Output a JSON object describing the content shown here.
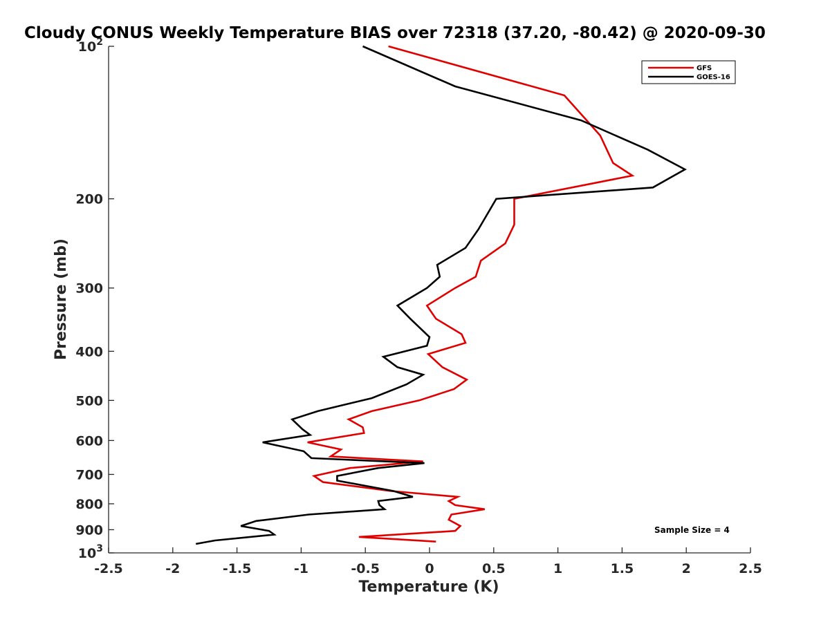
{
  "chart_data": {
    "type": "line",
    "title": "Cloudy CONUS Weekly Temperature BIAS over 72318 (37.20, -80.42) @ 2020-09-30",
    "xlabel": "Temperature (K)",
    "ylabel": "Pressure (mb)",
    "xlim": [
      -2.5,
      2.5
    ],
    "ylim": [
      100,
      1000
    ],
    "yscale": "log",
    "y_reversed": true,
    "grid": false,
    "legend_position": "top-right",
    "x_ticks": [
      "-2.5",
      "-2",
      "-1.5",
      "-1",
      "-0.5",
      "0",
      "0.5",
      "1",
      "1.5",
      "2",
      "2.5"
    ],
    "y_ticks": [
      {
        "value": 100,
        "base": "10",
        "exp": "2"
      },
      {
        "value": 200,
        "label": "200"
      },
      {
        "value": 300,
        "label": "300"
      },
      {
        "value": 400,
        "label": "400"
      },
      {
        "value": 500,
        "label": "500"
      },
      {
        "value": 600,
        "label": "600"
      },
      {
        "value": 700,
        "label": "700"
      },
      {
        "value": 800,
        "label": "800"
      },
      {
        "value": 900,
        "label": "900"
      },
      {
        "value": 1000,
        "base": "10",
        "exp": "3"
      }
    ],
    "series": [
      {
        "name": "GFS",
        "color": "#e00000",
        "points": [
          [
            -0.32,
            100
          ],
          [
            1.05,
            125
          ],
          [
            1.33,
            150
          ],
          [
            1.43,
            170
          ],
          [
            1.58,
            180
          ],
          [
            0.66,
            200
          ],
          [
            0.66,
            225
          ],
          [
            0.59,
            245
          ],
          [
            0.4,
            265
          ],
          [
            0.36,
            285
          ],
          [
            0.2,
            300
          ],
          [
            -0.02,
            325
          ],
          [
            0.05,
            345
          ],
          [
            0.25,
            370
          ],
          [
            0.28,
            385
          ],
          [
            -0.01,
            405
          ],
          [
            0.1,
            430
          ],
          [
            0.29,
            455
          ],
          [
            0.19,
            475
          ],
          [
            -0.08,
            500
          ],
          [
            -0.45,
            525
          ],
          [
            -0.63,
            545
          ],
          [
            -0.52,
            565
          ],
          [
            -0.51,
            580
          ],
          [
            -0.95,
            605
          ],
          [
            -0.69,
            625
          ],
          [
            -0.77,
            645
          ],
          [
            -0.05,
            660
          ],
          [
            -0.62,
            680
          ],
          [
            -0.9,
            705
          ],
          [
            -0.83,
            725
          ],
          [
            -0.3,
            755
          ],
          [
            0.22,
            775
          ],
          [
            0.15,
            790
          ],
          [
            0.2,
            805
          ],
          [
            0.43,
            820
          ],
          [
            0.17,
            840
          ],
          [
            0.15,
            860
          ],
          [
            0.24,
            885
          ],
          [
            0.2,
            905
          ],
          [
            -0.55,
            930
          ],
          [
            0.05,
            950
          ]
        ]
      },
      {
        "name": "GOES-16",
        "color": "#000000",
        "points": [
          [
            -0.52,
            100
          ],
          [
            0.2,
            120
          ],
          [
            1.18,
            140
          ],
          [
            1.7,
            160
          ],
          [
            1.99,
            175
          ],
          [
            1.74,
            190
          ],
          [
            0.52,
            200
          ],
          [
            0.38,
            230
          ],
          [
            0.28,
            250
          ],
          [
            0.06,
            270
          ],
          [
            0.08,
            285
          ],
          [
            -0.02,
            300
          ],
          [
            -0.25,
            325
          ],
          [
            -0.15,
            345
          ],
          [
            0.0,
            375
          ],
          [
            -0.02,
            390
          ],
          [
            -0.36,
            410
          ],
          [
            -0.25,
            430
          ],
          [
            -0.05,
            445
          ],
          [
            -0.18,
            465
          ],
          [
            -0.45,
            495
          ],
          [
            -0.87,
            525
          ],
          [
            -1.07,
            545
          ],
          [
            -0.99,
            570
          ],
          [
            -0.93,
            585
          ],
          [
            -1.3,
            605
          ],
          [
            -0.98,
            630
          ],
          [
            -0.92,
            650
          ],
          [
            -0.04,
            665
          ],
          [
            -0.4,
            680
          ],
          [
            -0.72,
            705
          ],
          [
            -0.72,
            720
          ],
          [
            -0.28,
            755
          ],
          [
            -0.13,
            775
          ],
          [
            -0.4,
            790
          ],
          [
            -0.39,
            805
          ],
          [
            -0.35,
            820
          ],
          [
            -0.94,
            840
          ],
          [
            -1.35,
            865
          ],
          [
            -1.47,
            885
          ],
          [
            -1.25,
            905
          ],
          [
            -1.21,
            920
          ],
          [
            -1.67,
            945
          ],
          [
            -1.82,
            960
          ]
        ]
      }
    ],
    "annotations": [
      {
        "text": "Sample Size = 4",
        "position": "bottom-right"
      }
    ]
  }
}
